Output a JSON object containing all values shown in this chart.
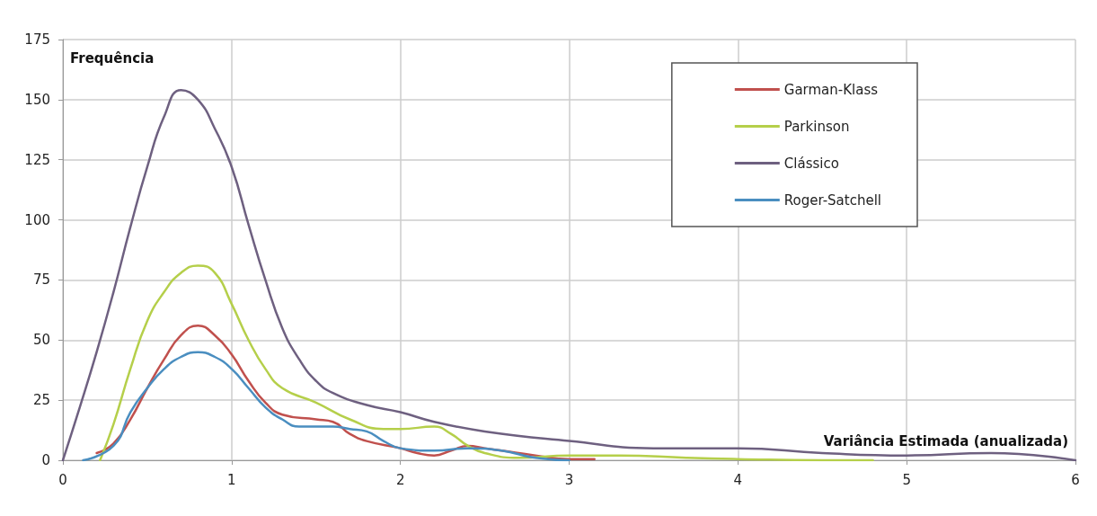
{
  "chart_data": {
    "type": "line",
    "xlabel": "Variância Estimada (anualizada)",
    "ylabel": "Frequência",
    "xlim": [
      0,
      6
    ],
    "xticks": [
      0,
      1,
      2,
      3,
      4,
      5,
      6
    ],
    "ylim": [
      0,
      175
    ],
    "yticks": [
      0,
      25,
      50,
      75,
      100,
      125,
      150,
      175
    ],
    "grid": true,
    "legend": "top right",
    "marker": "none",
    "line_style": "solid",
    "series": [
      {
        "name": "Garman-Klass",
        "color": "#c0504d",
        "x": [
          0.2,
          0.3,
          0.4,
          0.5,
          0.6,
          0.7,
          0.8,
          0.9,
          1.0,
          1.1,
          1.2,
          1.3,
          1.5,
          1.6,
          1.7,
          1.8,
          2.0,
          2.1,
          2.2,
          2.3,
          2.4,
          2.5,
          2.6,
          2.8,
          3.0,
          3.15
        ],
        "values": [
          3,
          7,
          17,
          30,
          42,
          52,
          56,
          52,
          44,
          33,
          24,
          19,
          17,
          16,
          11,
          8,
          5,
          3,
          2,
          4,
          6,
          5,
          4,
          2,
          0.5,
          0.5
        ]
      },
      {
        "name": "Parkinson",
        "color": "#b5cf4a",
        "x": [
          0.22,
          0.3,
          0.4,
          0.5,
          0.6,
          0.7,
          0.8,
          0.9,
          1.0,
          1.1,
          1.2,
          1.3,
          1.5,
          1.7,
          1.9,
          2.0,
          2.2,
          2.3,
          2.4,
          2.5,
          2.7,
          3.0,
          3.3,
          3.7,
          4.0,
          4.5,
          4.8
        ],
        "values": [
          0,
          15,
          38,
          58,
          70,
          78,
          81,
          78,
          65,
          50,
          38,
          30,
          24,
          17,
          13,
          13,
          14,
          11,
          6,
          3,
          1,
          2,
          2,
          1,
          0.5,
          0,
          0
        ]
      },
      {
        "name": "Clássico",
        "color": "#6e6080",
        "x": [
          0,
          0.1,
          0.2,
          0.3,
          0.4,
          0.5,
          0.6,
          0.7,
          0.8,
          0.9,
          1.0,
          1.1,
          1.2,
          1.3,
          1.4,
          1.5,
          1.6,
          1.8,
          2.0,
          2.2,
          2.5,
          3.0,
          3.5,
          4.0,
          4.5,
          5.0,
          5.5,
          6.0
        ],
        "values": [
          0,
          22,
          45,
          70,
          97,
          122,
          143,
          154,
          150,
          138,
          122,
          98,
          75,
          55,
          42,
          33,
          28,
          23,
          20,
          16,
          12,
          8,
          5,
          5,
          3,
          2,
          3,
          0
        ]
      },
      {
        "name": "Roger-Satchell",
        "color": "#4a8ec0",
        "x": [
          0.12,
          0.3,
          0.4,
          0.5,
          0.6,
          0.7,
          0.8,
          0.9,
          1.0,
          1.1,
          1.2,
          1.3,
          1.4,
          1.6,
          1.7,
          1.8,
          1.9,
          2.0,
          2.2,
          2.4,
          2.6,
          2.8,
          3.0
        ],
        "values": [
          0,
          6,
          20,
          30,
          38,
          43,
          45,
          43,
          38,
          30,
          22,
          17,
          14,
          14,
          13,
          12,
          8,
          5,
          4,
          5,
          4,
          1,
          0
        ]
      }
    ]
  }
}
